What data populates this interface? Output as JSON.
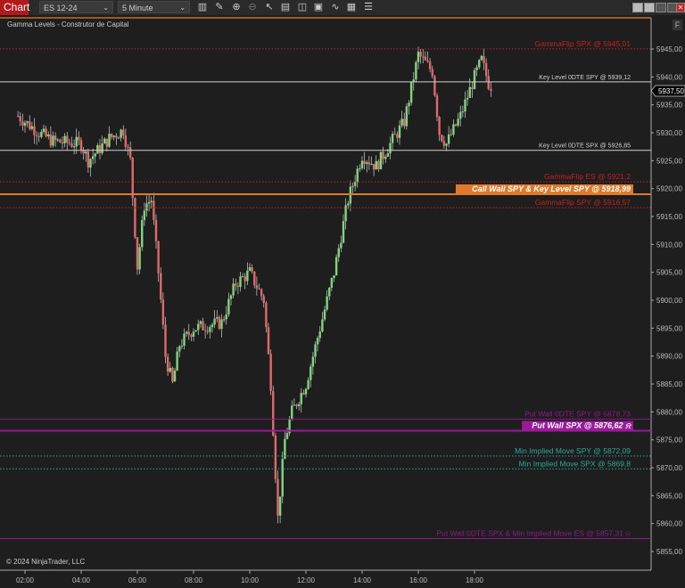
{
  "toolbar": {
    "chart_label": "Chart",
    "instrument": "ES 12-24",
    "interval": "5 Minute",
    "icons": [
      "bar-type-icon",
      "pencil-icon",
      "zoom-in-icon",
      "zoom-out-icon",
      "cursor-icon",
      "data-box-icon",
      "properties-icon",
      "strategies-icon",
      "drawing-tools-icon",
      "indicators-icon",
      "chart-trader-icon"
    ],
    "window_buttons": [
      "tile-icon",
      "tile-icon",
      "minimize-icon",
      "maximize-icon",
      "close-icon"
    ]
  },
  "chart": {
    "title": "Gamma Levels - Construtor de Capital",
    "f_button": "F",
    "copyright": "© 2024 NinjaTrader, LLC",
    "current_price": "5937,50",
    "price_ticks": [
      "5945,00",
      "5940,00",
      "5935,00",
      "5930,00",
      "5925,00",
      "5920,00",
      "5915,00",
      "5910,00",
      "5905,00",
      "5900,00",
      "5895,00",
      "5890,00",
      "5885,00",
      "5880,00",
      "5875,00",
      "5870,00",
      "5865,00",
      "5860,00",
      "5855,00"
    ],
    "time_ticks": [
      "02:00",
      "04:00",
      "06:00",
      "08:00",
      "10:00",
      "12:00",
      "14:00",
      "16:00",
      "18:00"
    ],
    "levels": [
      {
        "label": "GammaFlip SPX @ 5945,01",
        "price": 5945.01,
        "color": "#c81e1e",
        "style": "dotted",
        "badge": false
      },
      {
        "label": "Key Level 0DTE SPY @ 5939,12",
        "price": 5939.12,
        "color": "#d0d0d0",
        "style": "solid",
        "badge": false,
        "small": true
      },
      {
        "label": "Key Level 0DTE SPX @ 5926,85",
        "price": 5926.85,
        "color": "#d0d0d0",
        "style": "solid",
        "badge": false,
        "small": true
      },
      {
        "label": "GammaFlip ES @ 5921,2",
        "price": 5921.2,
        "color": "#c81e1e",
        "style": "dotted",
        "badge": false
      },
      {
        "label": "Call Wall SPY & Key Level SPY @ 5918,99",
        "price": 5918.99,
        "color": "#e07a2a",
        "style": "solid",
        "badge": true
      },
      {
        "label": "GammaFlip SPY @ 5916,57",
        "price": 5916.57,
        "color": "#c81e1e",
        "style": "dotted",
        "badge": false
      },
      {
        "label": "Put Wall 0DTE SPY @ 5878,73",
        "price": 5878.73,
        "color": "#8a1a8a",
        "style": "solid",
        "badge": false
      },
      {
        "label": "Put Wall SPX @ 5876,62",
        "price": 5876.62,
        "color": "#9a1a9a",
        "style": "solid",
        "badge": true,
        "bell": true
      },
      {
        "label": "Min Implied Move SPY @ 5872,09",
        "price": 5872.09,
        "color": "#2aa89a",
        "style": "dotted",
        "badge": false
      },
      {
        "label": "Min Implied Move SPX @ 5869,8",
        "price": 5869.8,
        "color": "#2aa89a",
        "style": "dotted",
        "badge": false
      },
      {
        "label": "Put Wall 0DTE SPX & Min Implied Move ES @ 5857,31",
        "price": 5857.31,
        "color": "#8a1a8a",
        "style": "solid",
        "badge": false,
        "bell": true
      }
    ],
    "price_path": [
      [
        "01:45",
        5933
      ],
      [
        "02:30",
        5930
      ],
      [
        "03:00",
        5928.5
      ],
      [
        "04:00",
        5928
      ],
      [
        "04:15",
        5925
      ],
      [
        "05:00",
        5929
      ],
      [
        "05:30",
        5930.5
      ],
      [
        "05:45",
        5925
      ],
      [
        "06:00",
        5906
      ],
      [
        "06:15",
        5917
      ],
      [
        "06:30",
        5918
      ],
      [
        "06:45",
        5905
      ],
      [
        "07:00",
        5890
      ],
      [
        "07:15",
        5885
      ],
      [
        "07:30",
        5892
      ],
      [
        "08:00",
        5895
      ],
      [
        "09:00",
        5896
      ],
      [
        "09:30",
        5903
      ],
      [
        "10:00",
        5905
      ],
      [
        "10:30",
        5900
      ],
      [
        "10:45",
        5885
      ],
      [
        "11:00",
        5861
      ],
      [
        "11:15",
        5875
      ],
      [
        "11:30",
        5880
      ],
      [
        "12:00",
        5885
      ],
      [
        "12:30",
        5895
      ],
      [
        "13:00",
        5905
      ],
      [
        "13:30",
        5918
      ],
      [
        "14:00",
        5926
      ],
      [
        "14:30",
        5924
      ],
      [
        "15:00",
        5928
      ],
      [
        "15:30",
        5932
      ],
      [
        "16:00",
        5944
      ],
      [
        "16:30",
        5941
      ],
      [
        "16:45",
        5930
      ],
      [
        "17:00",
        5928
      ],
      [
        "17:30",
        5933
      ],
      [
        "18:00",
        5940
      ],
      [
        "18:15",
        5943
      ],
      [
        "18:35",
        5937.5
      ]
    ],
    "colors": {
      "up": "#7fd67f",
      "down": "#e06a6a",
      "wick": "#cfcfcf",
      "background": "#1e1e1e"
    }
  }
}
